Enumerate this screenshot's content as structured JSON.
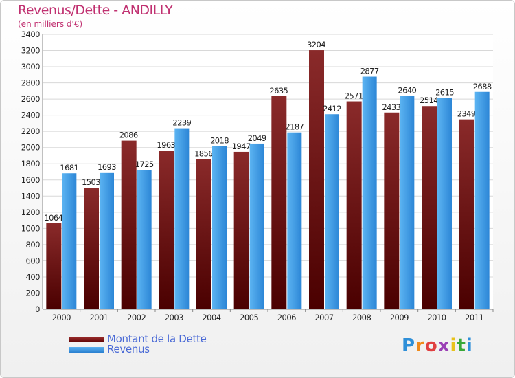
{
  "chart_data": {
    "type": "bar",
    "title": "Revenus/Dette - ANDILLY",
    "subtitle": "(en milliers d'€)",
    "categories": [
      "2000",
      "2001",
      "2002",
      "2003",
      "2004",
      "2005",
      "2006",
      "2007",
      "2008",
      "2009",
      "2010",
      "2011"
    ],
    "series": [
      {
        "name": "Montant de la Dette",
        "color": "#7a1a1a",
        "values": [
          1064,
          1503,
          2086,
          1963,
          1856,
          1947,
          2635,
          3204,
          2571,
          2433,
          2514,
          2349
        ],
        "labels": [
          "1064",
          "1503",
          "2086",
          "1963",
          "1856",
          "1947",
          "2635",
          "3204",
          "2571",
          "2433",
          "2514",
          "2349"
        ]
      },
      {
        "name": "Revenus",
        "color": "#3d9be8",
        "values": [
          1681,
          1693,
          1725,
          2239,
          2018,
          2049,
          2187,
          2412,
          2877,
          2640,
          2615,
          2688
        ],
        "labels": [
          "1681",
          "1693",
          "1725",
          "2239",
          "2018",
          "2049",
          "2187",
          "2412",
          "2877",
          "2640",
          "2615",
          "2688"
        ]
      }
    ],
    "ylim": [
      0,
      3400
    ],
    "yticks": [
      0,
      200,
      400,
      600,
      800,
      1000,
      1200,
      1400,
      1600,
      1800,
      2000,
      2200,
      2400,
      2600,
      2800,
      3000,
      3200,
      3400
    ],
    "grid": true,
    "legend_position": "bottom-left"
  },
  "logo": {
    "text": "Proxiti",
    "letter_colors": [
      "#2e8fd8",
      "#f08a1c",
      "#e04040",
      "#9a3fb5",
      "#e8c21b",
      "#38a838",
      "#2e8fd8"
    ]
  }
}
